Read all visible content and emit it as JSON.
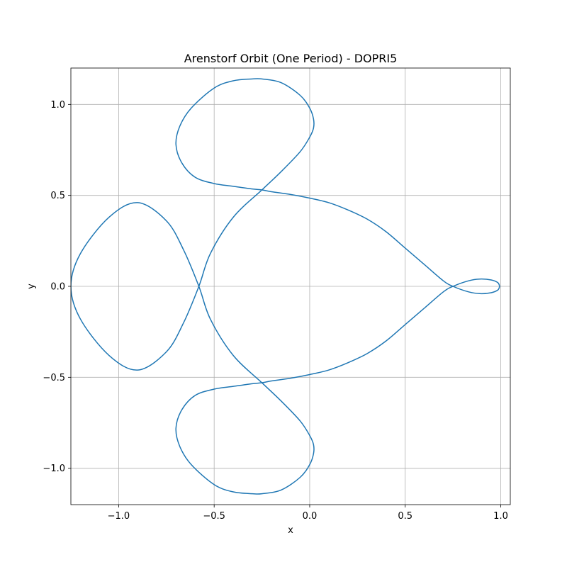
{
  "chart_data": {
    "type": "line",
    "title": "Arenstorf Orbit (One Period) - DOPRI5",
    "xlabel": "x",
    "ylabel": "y",
    "xlim": [
      -1.25,
      1.05
    ],
    "ylim": [
      -1.2,
      1.2
    ],
    "grid": true,
    "x_ticks": [
      -1.0,
      -0.5,
      0.0,
      0.5,
      1.0
    ],
    "x_tick_labels": [
      "−1.0",
      "−0.5",
      "0.0",
      "0.5",
      "1.0"
    ],
    "y_ticks": [
      -1.0,
      -0.5,
      0.0,
      0.5,
      1.0
    ],
    "y_tick_labels": [
      "−1.0",
      "−0.5",
      "0.0",
      "0.5",
      "1.0"
    ],
    "series": [
      {
        "color": "#1f77b4",
        "x": [
          0.994,
          0.985,
          0.95,
          0.89,
          0.83,
          0.75,
          0.7,
          0.6,
          0.5,
          0.4,
          0.3,
          0.2,
          0.1,
          0.0,
          -0.1,
          -0.2,
          -0.25,
          -0.3,
          -0.4,
          -0.5,
          -0.6,
          -0.67,
          -0.7,
          -0.68,
          -0.62,
          -0.5,
          -0.4,
          -0.3,
          -0.25,
          -0.15,
          -0.05,
          0.0,
          0.02,
          0.02,
          0.0,
          -0.05,
          -0.15,
          -0.25,
          -0.4,
          -0.52,
          -0.58,
          -0.66,
          -0.75,
          -0.9,
          -1.05,
          -1.2,
          -1.25,
          -1.2,
          -1.05,
          -0.9,
          -0.75,
          -0.66,
          -0.58,
          -0.52,
          -0.4,
          -0.25,
          -0.15,
          -0.05,
          0.0,
          0.02,
          0.02,
          0.0,
          -0.05,
          -0.15,
          -0.25,
          -0.3,
          -0.4,
          -0.5,
          -0.62,
          -0.68,
          -0.7,
          -0.67,
          -0.6,
          -0.5,
          -0.4,
          -0.3,
          -0.25,
          -0.2,
          -0.1,
          0.0,
          0.1,
          0.2,
          0.3,
          0.4,
          0.5,
          0.6,
          0.7,
          0.75,
          0.83,
          0.89,
          0.95,
          0.985,
          0.994
        ],
        "y": [
          0.0,
          -0.02,
          -0.035,
          -0.04,
          -0.03,
          0.0,
          0.03,
          0.12,
          0.21,
          0.3,
          0.37,
          0.42,
          0.46,
          0.485,
          0.505,
          0.52,
          0.53,
          0.535,
          0.55,
          0.565,
          0.6,
          0.68,
          0.78,
          0.88,
          0.98,
          1.09,
          1.13,
          1.14,
          1.14,
          1.12,
          1.05,
          0.98,
          0.92,
          0.87,
          0.82,
          0.74,
          0.63,
          0.53,
          0.38,
          0.18,
          0.0,
          -0.2,
          -0.36,
          -0.46,
          -0.38,
          -0.18,
          0.0,
          0.18,
          0.38,
          0.46,
          0.36,
          0.2,
          0.0,
          -0.18,
          -0.38,
          -0.53,
          -0.63,
          -0.74,
          -0.82,
          -0.87,
          -0.92,
          -0.98,
          -1.05,
          -1.12,
          -1.14,
          -1.14,
          -1.13,
          -1.09,
          -0.98,
          -0.88,
          -0.78,
          -0.68,
          -0.6,
          -0.565,
          -0.55,
          -0.535,
          -0.53,
          -0.52,
          -0.505,
          -0.485,
          -0.46,
          -0.42,
          -0.37,
          -0.3,
          -0.21,
          -0.12,
          -0.03,
          0.0,
          0.03,
          0.04,
          0.035,
          0.02,
          0.0
        ]
      }
    ]
  }
}
